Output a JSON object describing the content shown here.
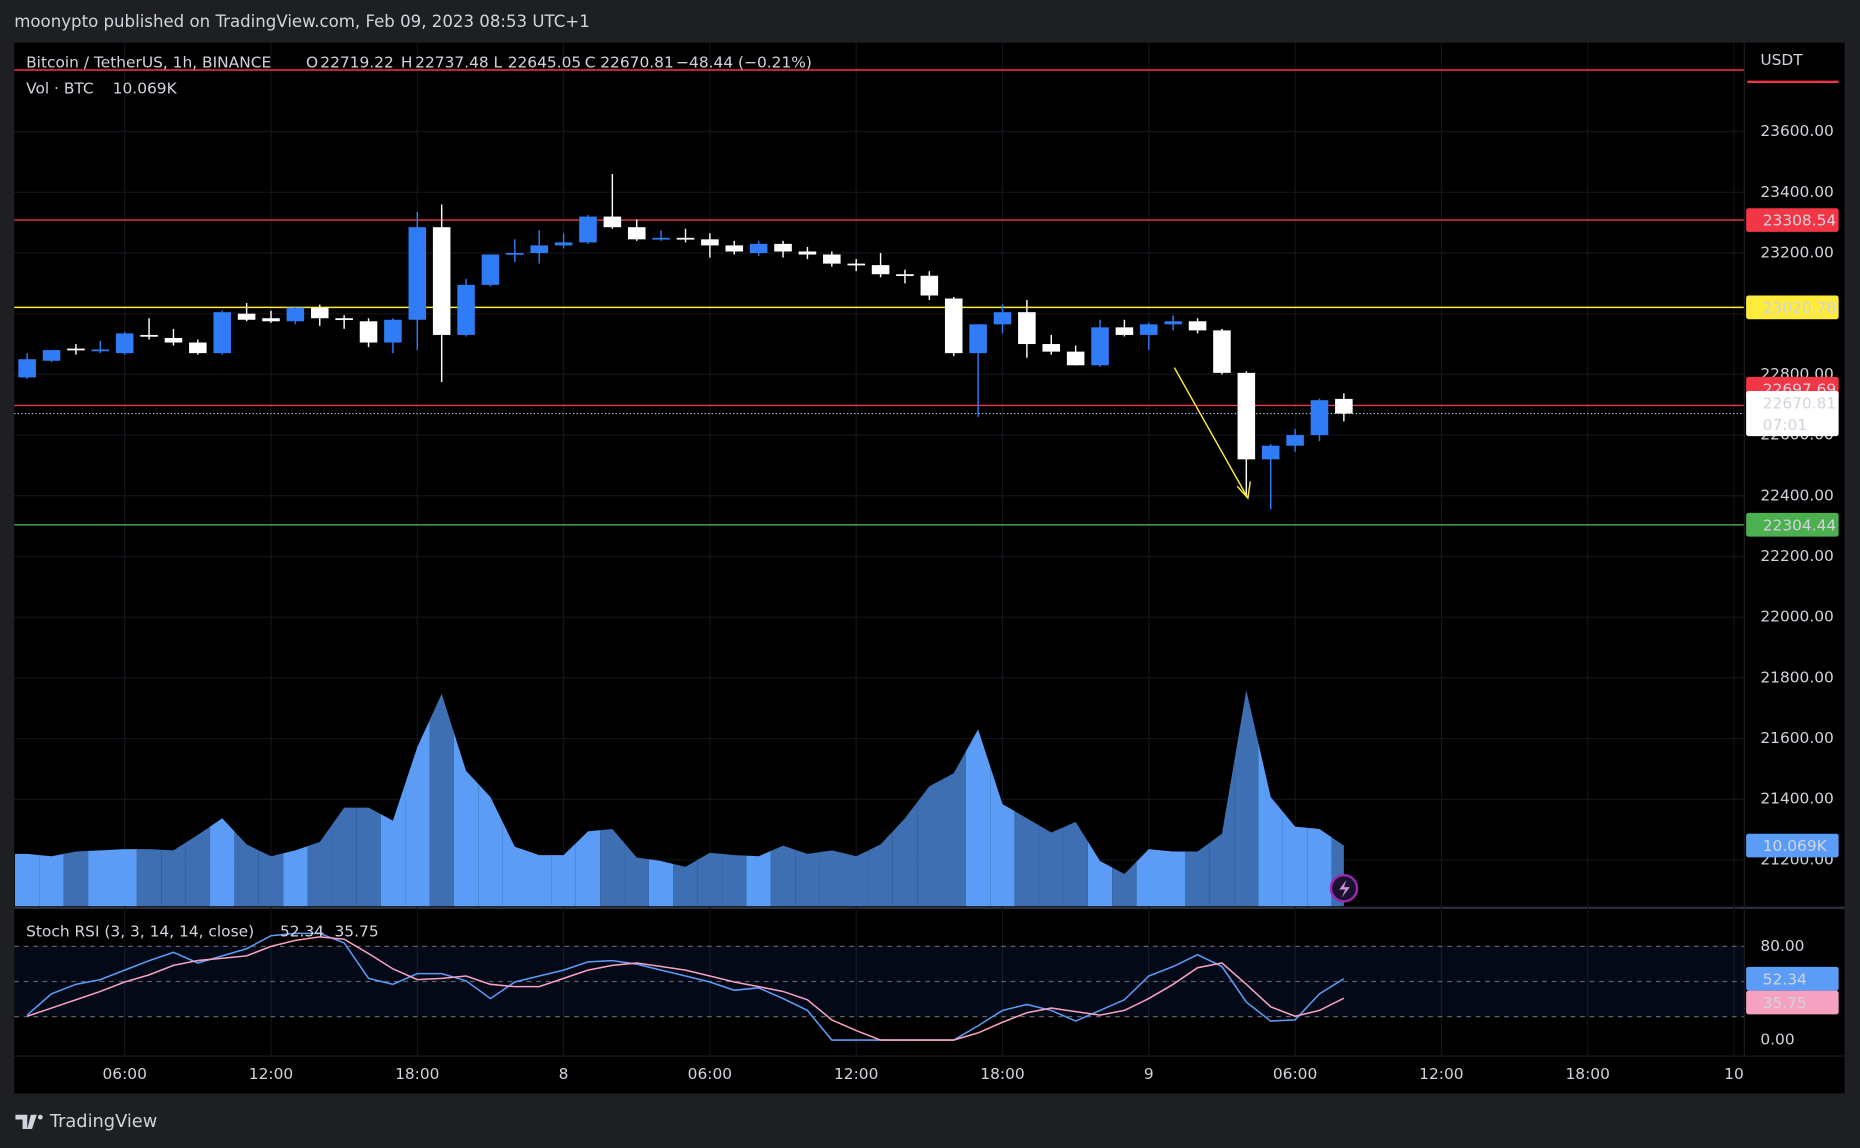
{
  "header": {
    "text": "moonypto published on TradingView.com, Feb 09, 2023 08:53 UTC+1"
  },
  "footer": {
    "brand": "TradingView"
  },
  "chart_data": [
    {
      "type": "candlestick",
      "title": "Bitcoin / TetherUS, 1h, BINANCE",
      "ohlc_labels": [
        "O",
        "H",
        "L",
        "C"
      ],
      "change": "−48.44 (−0.21%)",
      "currency": "USDT",
      "countdown": "07:01",
      "up_color": "#2f7cf6",
      "down_color": "#ffffff",
      "legend_color": "#f23645",
      "open": [
        22790,
        22845,
        22885,
        22878,
        22870,
        22930,
        22920,
        22905,
        22870,
        23000,
        22985,
        22975,
        23020,
        22985,
        22975,
        22905,
        22980,
        23285,
        22930,
        23095,
        23195,
        23200,
        23225,
        23235,
        23320,
        23285,
        23245,
        23250,
        23245,
        23225,
        23200,
        23230,
        23205,
        23195,
        23165,
        23160,
        23130,
        23125,
        23050,
        22870,
        22965,
        23005,
        22900,
        22875,
        22830,
        22955,
        22930,
        22965,
        22975,
        22945,
        22805,
        22520,
        22565,
        22600,
        22719.22
      ],
      "high": [
        22870,
        22880,
        22900,
        22910,
        22940,
        22985,
        22950,
        22915,
        23010,
        23035,
        23010,
        23025,
        23030,
        22995,
        22985,
        22985,
        23335,
        23360,
        23115,
        23195,
        23245,
        23275,
        23265,
        23325,
        23460,
        23310,
        23275,
        23280,
        23265,
        23240,
        23240,
        23240,
        23220,
        23205,
        23180,
        23200,
        23145,
        23140,
        23055,
        22965,
        23030,
        23045,
        22930,
        22895,
        22980,
        22980,
        22970,
        22995,
        22985,
        22950,
        22810,
        22570,
        22620,
        22720,
        22737.48
      ],
      "low": [
        22785,
        22840,
        22865,
        22870,
        22865,
        22915,
        22895,
        22865,
        22865,
        22975,
        22970,
        22965,
        22960,
        22950,
        22890,
        22870,
        22880,
        22775,
        22925,
        23090,
        23170,
        23165,
        23215,
        23230,
        23280,
        23240,
        23240,
        23235,
        23185,
        23195,
        23190,
        23185,
        23180,
        23155,
        23140,
        23120,
        23100,
        23045,
        22860,
        22660,
        22935,
        22855,
        22865,
        22830,
        22825,
        22925,
        22880,
        22945,
        22935,
        22800,
        22400,
        22355,
        22545,
        22580,
        22645.05
      ],
      "close": [
        22850,
        22880,
        22880,
        22882,
        22935,
        22925,
        22905,
        22870,
        23005,
        22980,
        22975,
        23020,
        22985,
        22980,
        22905,
        22980,
        23285,
        22930,
        23095,
        23195,
        23200,
        23225,
        23235,
        23320,
        23285,
        23245,
        23250,
        23245,
        23225,
        23205,
        23230,
        23205,
        23195,
        23165,
        23160,
        23130,
        23125,
        23060,
        22870,
        22965,
        23005,
        22900,
        22875,
        22830,
        22955,
        22930,
        22965,
        22975,
        22945,
        22805,
        22520,
        22565,
        22600,
        22715,
        22670.81
      ],
      "xlim": [
        -0.53,
        70.4
      ],
      "xticks": [
        {
          "value": 4,
          "label": "06:00"
        },
        {
          "value": 10,
          "label": "12:00"
        },
        {
          "value": 16,
          "label": "18:00"
        },
        {
          "value": 22,
          "label": "8"
        },
        {
          "value": 28,
          "label": "06:00"
        },
        {
          "value": 34,
          "label": "12:00"
        },
        {
          "value": 40,
          "label": "18:00"
        },
        {
          "value": 46,
          "label": "9"
        },
        {
          "value": 52,
          "label": "06:00"
        },
        {
          "value": 58,
          "label": "12:00"
        },
        {
          "value": 64,
          "label": "18:00"
        },
        {
          "value": 70,
          "label": "10"
        }
      ],
      "ylim": [
        21048,
        23893
      ],
      "yticks": [
        {
          "value": 21200,
          "label": "21200.00"
        },
        {
          "value": 21400,
          "label": "21400.00"
        },
        {
          "value": 21600,
          "label": "21600.00"
        },
        {
          "value": 21800,
          "label": "21800.00"
        },
        {
          "value": 22000,
          "label": "22000.00"
        },
        {
          "value": 22200,
          "label": "22200.00"
        },
        {
          "value": 22400,
          "label": "22400.00"
        },
        {
          "value": 22600,
          "label": "22600.00"
        },
        {
          "value": 22800,
          "label": "22800.00"
        },
        {
          "value": 23000,
          "label": "23000.00"
        },
        {
          "value": 23200,
          "label": "23200.00"
        },
        {
          "value": 23400,
          "label": "23400.00"
        },
        {
          "value": 23600,
          "label": "23600.00"
        }
      ],
      "grid": true,
      "levels": [
        {
          "price": 23803,
          "color": "#f23645"
        },
        {
          "price": 23308.54,
          "color": "#f23645",
          "label_color": "#ffffff"
        },
        {
          "price": 23020.78,
          "color": "#ffeb3b",
          "label_color": "#000000"
        },
        {
          "price": 22697.69,
          "color": "#f23645",
          "label_color": "#ffffff"
        },
        {
          "price": 22304.44,
          "color": "#4caf50",
          "label_color": "#ffffff"
        }
      ]
    },
    {
      "type": "area",
      "title": "Vol · BTC",
      "values": [
        8686,
        8291,
        9080,
        9278,
        9475,
        9475,
        9278,
        11844,
        14608,
        10265,
        8291,
        9278,
        10660,
        16384,
        16384,
        14213,
        26452,
        35335,
        22504,
        18161,
        9870,
        8488,
        8488,
        12436,
        12831,
        8093,
        7501,
        6514,
        8883,
        8488,
        8291,
        10067,
        8686,
        9278,
        8291,
        10265,
        14608,
        19937,
        22109,
        29413,
        16976,
        14608,
        12239,
        14015,
        7501,
        5330,
        9475,
        9080,
        9080,
        12041,
        35927,
        18161,
        13226,
        12831,
        10069
      ],
      "value_labels": [
        null,
        null,
        null,
        null,
        null,
        null,
        null,
        null,
        null,
        null,
        null,
        null,
        null,
        null,
        null,
        null,
        null,
        null,
        null,
        null,
        null,
        null,
        null,
        null,
        null,
        null,
        null,
        null,
        null,
        null,
        null,
        null,
        null,
        null,
        null,
        null,
        null,
        null,
        null,
        null,
        null,
        null,
        null,
        null,
        null,
        null,
        null,
        null,
        null,
        null,
        null,
        null,
        null,
        null,
        "10.069K"
      ],
      "up_color": "#5b9cf6",
      "down_color": "#3f6fb3",
      "ylim": [
        0,
        143700
      ]
    },
    {
      "type": "line",
      "title": "Stoch RSI (3, 3, 14, 14, close)",
      "series": [
        {
          "color": "#5b9cf6",
          "values": [
            21.3,
            39.5,
            47.6,
            51.6,
            59.7,
            67.8,
            74.9,
            65.8,
            71.9,
            78.0,
            89.1,
            91.1,
            91.1,
            83.0,
            52.7,
            47.6,
            56.7,
            56.7,
            50.6,
            35.4,
            49.6,
            54.7,
            59.7,
            66.8,
            67.8,
            64.8,
            59.7,
            54.7,
            49.6,
            42.5,
            44.6,
            35.4,
            25.3,
            0,
            0,
            0,
            0,
            0,
            0,
            12.2,
            25.3,
            30.4,
            25.3,
            16.2,
            25.3,
            34.4,
            54.7,
            62.8,
            72.9,
            62.8,
            32.4,
            16.2,
            17.2,
            39.5,
            52.34
          ]
        },
        {
          "color": "#f7a1c0",
          "values": [
            20.3,
            27.3,
            34.4,
            41.5,
            49.6,
            55.7,
            63.8,
            67.9,
            69.9,
            71.9,
            80.0,
            85.1,
            88.1,
            86.1,
            73.9,
            60.8,
            51.6,
            52.7,
            54.7,
            47.6,
            45.6,
            45.6,
            52.7,
            59.7,
            63.8,
            65.8,
            62.8,
            59.7,
            54.7,
            49.6,
            45.6,
            41.5,
            34.4,
            17.2,
            8.1,
            0,
            0,
            0,
            0,
            6.1,
            15.2,
            23.3,
            27.3,
            24.3,
            21.3,
            25.3,
            35.4,
            47.6,
            61.8,
            65.8,
            47.6,
            28.4,
            20.3,
            25.3,
            35.75
          ]
        }
      ],
      "band_lines": [
        80,
        50,
        20
      ],
      "ylim": [
        -13.2,
        111.4
      ],
      "yticks": [
        {
          "value": 80,
          "label": "80.00"
        },
        {
          "value": 0,
          "label": "0.00"
        }
      ]
    }
  ]
}
